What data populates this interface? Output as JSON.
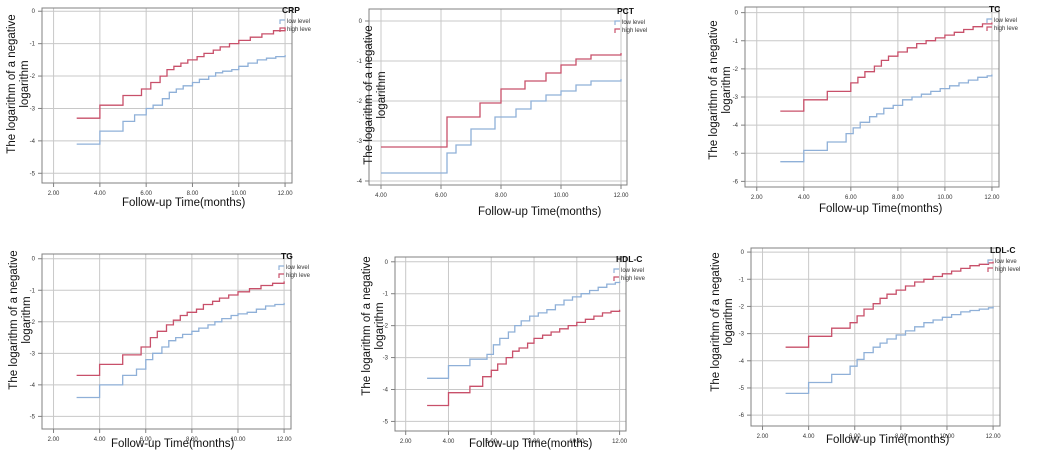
{
  "ylabel_line1": "The logarithm of a negative",
  "ylabel_line2": "logarithm",
  "xlabel": "Follow-up Time(months)",
  "colors": {
    "low": "#8fb0d8",
    "high": "#c8506a",
    "axis": "#808080",
    "grid": "#c8c8c8"
  },
  "chart_data": [
    {
      "type": "line",
      "title": "CRP",
      "xlim": [
        1.5,
        12.3
      ],
      "ylim": [
        -5.3,
        0.1
      ],
      "xticks": [
        "2.00",
        "4.00",
        "6.00",
        "8.00",
        "10.00",
        "12.00"
      ],
      "yticks": [
        "0",
        "-1",
        "-2",
        "-3",
        "-4",
        "-5"
      ],
      "legend": [
        "low level",
        "high leve"
      ],
      "series": [
        {
          "name": "low level",
          "x": [
            3.0,
            4.0,
            5.0,
            5.5,
            6.0,
            6.3,
            6.7,
            7.0,
            7.3,
            7.6,
            8.0,
            8.3,
            8.7,
            9.0,
            9.3,
            9.7,
            10.0,
            10.4,
            10.8,
            11.2,
            11.6,
            12.0
          ],
          "y": [
            -4.1,
            -3.7,
            -3.4,
            -3.2,
            -3.0,
            -2.9,
            -2.7,
            -2.5,
            -2.4,
            -2.3,
            -2.2,
            -2.1,
            -2.0,
            -1.9,
            -1.85,
            -1.8,
            -1.7,
            -1.6,
            -1.5,
            -1.45,
            -1.4,
            -1.35
          ]
        },
        {
          "name": "high leve",
          "x": [
            3.0,
            4.0,
            5.0,
            5.8,
            6.2,
            6.6,
            6.9,
            7.2,
            7.5,
            7.8,
            8.2,
            8.5,
            8.9,
            9.2,
            9.6,
            10.0,
            10.5,
            11.0,
            11.5,
            12.0
          ],
          "y": [
            -3.3,
            -2.9,
            -2.6,
            -2.4,
            -2.2,
            -2.0,
            -1.8,
            -1.7,
            -1.6,
            -1.5,
            -1.4,
            -1.3,
            -1.2,
            -1.1,
            -1.0,
            -0.9,
            -0.8,
            -0.7,
            -0.6,
            -0.5
          ]
        }
      ]
    },
    {
      "type": "line",
      "title": "PCT",
      "xlim": [
        3.6,
        12.2
      ],
      "ylim": [
        -4.1,
        0.3
      ],
      "xticks": [
        "4.00",
        "6.00",
        "8.00",
        "10.00",
        "12.00"
      ],
      "yticks": [
        "0",
        "-1",
        "-2",
        "-3",
        "-4"
      ],
      "legend": [
        "low level",
        "high level"
      ],
      "series": [
        {
          "name": "low level",
          "x": [
            4.0,
            6.2,
            6.5,
            7.0,
            7.8,
            8.5,
            9.0,
            9.5,
            10.0,
            10.5,
            11.0,
            12.0
          ],
          "y": [
            -3.8,
            -3.3,
            -3.1,
            -2.7,
            -2.4,
            -2.2,
            -2.0,
            -1.85,
            -1.75,
            -1.6,
            -1.5,
            -1.45
          ]
        },
        {
          "name": "high level",
          "x": [
            4.0,
            6.2,
            6.5,
            7.3,
            8.0,
            8.8,
            9.5,
            10.0,
            10.5,
            11.0,
            12.0
          ],
          "y": [
            -3.15,
            -2.4,
            -2.4,
            -2.05,
            -1.7,
            -1.5,
            -1.3,
            -1.1,
            -0.95,
            -0.85,
            -0.8
          ]
        }
      ]
    },
    {
      "type": "line",
      "title": "TC",
      "xlim": [
        1.5,
        12.3
      ],
      "ylim": [
        -6.2,
        0.2
      ],
      "xticks": [
        "2.00",
        "4.00",
        "6.00",
        "8.00",
        "10.00",
        "12.00"
      ],
      "yticks": [
        "0",
        "-1",
        "-2",
        "-3",
        "-4",
        "-5",
        "-6"
      ],
      "legend": [
        "low level",
        "high leve"
      ],
      "series": [
        {
          "name": "low level",
          "x": [
            3.0,
            4.0,
            5.0,
            5.8,
            6.1,
            6.4,
            6.8,
            7.1,
            7.4,
            7.8,
            8.2,
            8.6,
            9.0,
            9.4,
            9.8,
            10.2,
            10.6,
            11.0,
            11.4,
            11.8,
            12.0
          ],
          "y": [
            -5.3,
            -4.9,
            -4.6,
            -4.3,
            -4.1,
            -3.9,
            -3.7,
            -3.6,
            -3.4,
            -3.3,
            -3.1,
            -3.0,
            -2.9,
            -2.8,
            -2.7,
            -2.6,
            -2.5,
            -2.4,
            -2.3,
            -2.25,
            -2.2
          ]
        },
        {
          "name": "high leve",
          "x": [
            3.0,
            4.0,
            5.0,
            6.0,
            6.3,
            6.6,
            7.0,
            7.3,
            7.6,
            8.0,
            8.4,
            8.8,
            9.2,
            9.6,
            10.0,
            10.4,
            10.8,
            11.2,
            11.6,
            12.0
          ],
          "y": [
            -3.5,
            -3.1,
            -2.8,
            -2.5,
            -2.3,
            -2.1,
            -1.9,
            -1.7,
            -1.55,
            -1.4,
            -1.25,
            -1.1,
            -1.0,
            -0.9,
            -0.8,
            -0.7,
            -0.6,
            -0.5,
            -0.4,
            -0.35
          ]
        }
      ]
    },
    {
      "type": "line",
      "title": "TG",
      "xlim": [
        1.5,
        12.3
      ],
      "ylim": [
        -5.4,
        0.15
      ],
      "xticks": [
        "2.00",
        "4.00",
        "6.00",
        "8.00",
        "10.00",
        "12.00"
      ],
      "yticks": [
        "0",
        "-1",
        "-2",
        "-3",
        "-4",
        "-5"
      ],
      "legend": [
        "low level",
        "high leve"
      ],
      "series": [
        {
          "name": "low level",
          "x": [
            3.0,
            4.0,
            5.0,
            5.6,
            6.0,
            6.3,
            6.7,
            7.0,
            7.3,
            7.6,
            8.0,
            8.3,
            8.7,
            9.0,
            9.3,
            9.7,
            10.0,
            10.4,
            10.8,
            11.2,
            11.6,
            12.0
          ],
          "y": [
            -4.4,
            -4.0,
            -3.7,
            -3.5,
            -3.2,
            -3.0,
            -2.8,
            -2.6,
            -2.5,
            -2.4,
            -2.3,
            -2.2,
            -2.1,
            -2.0,
            -1.9,
            -1.8,
            -1.75,
            -1.7,
            -1.6,
            -1.5,
            -1.45,
            -1.4
          ]
        },
        {
          "name": "high leve",
          "x": [
            3.0,
            4.0,
            5.0,
            5.8,
            6.2,
            6.5,
            6.9,
            7.2,
            7.5,
            7.8,
            8.2,
            8.5,
            8.9,
            9.2,
            9.6,
            10.0,
            10.5,
            11.0,
            11.5,
            12.0
          ],
          "y": [
            -3.7,
            -3.35,
            -3.05,
            -2.8,
            -2.5,
            -2.3,
            -2.1,
            -1.95,
            -1.8,
            -1.7,
            -1.6,
            -1.45,
            -1.35,
            -1.25,
            -1.15,
            -1.05,
            -0.95,
            -0.85,
            -0.78,
            -0.72
          ]
        }
      ]
    },
    {
      "type": "line",
      "title": "HDL-C",
      "xlim": [
        1.5,
        12.3
      ],
      "ylim": [
        -5.3,
        0.15
      ],
      "xticks": [
        "2.00",
        "4.00",
        "6.00",
        "8.00",
        "10.00",
        "12.00"
      ],
      "yticks": [
        "0",
        "-1",
        "-2",
        "-3",
        "-4",
        "-5"
      ],
      "legend": [
        "low level",
        "high leve"
      ],
      "series": [
        {
          "name": "low level",
          "x": [
            3.0,
            4.0,
            5.0,
            5.8,
            6.1,
            6.4,
            6.8,
            7.1,
            7.4,
            7.8,
            8.2,
            8.6,
            9.0,
            9.4,
            9.8,
            10.2,
            10.6,
            11.0,
            11.4,
            11.8,
            12.0
          ],
          "y": [
            -3.65,
            -3.25,
            -3.05,
            -2.9,
            -2.6,
            -2.4,
            -2.2,
            -2.0,
            -1.85,
            -1.7,
            -1.6,
            -1.5,
            -1.35,
            -1.2,
            -1.1,
            -1.0,
            -0.9,
            -0.8,
            -0.7,
            -0.65,
            -0.62
          ]
        },
        {
          "name": "high leve",
          "x": [
            3.0,
            4.0,
            5.0,
            5.6,
            6.0,
            6.3,
            6.7,
            7.0,
            7.3,
            7.7,
            8.0,
            8.4,
            8.8,
            9.2,
            9.6,
            10.0,
            10.4,
            10.8,
            11.2,
            11.6,
            12.0
          ],
          "y": [
            -4.5,
            -4.1,
            -3.9,
            -3.6,
            -3.4,
            -3.2,
            -3.0,
            -2.8,
            -2.7,
            -2.55,
            -2.4,
            -2.3,
            -2.2,
            -2.1,
            -2.0,
            -1.9,
            -1.8,
            -1.7,
            -1.6,
            -1.55,
            -1.5
          ]
        }
      ]
    },
    {
      "type": "line",
      "title": "LDL-C",
      "xlim": [
        1.5,
        12.3
      ],
      "ylim": [
        -6.4,
        0.15
      ],
      "xticks": [
        "2.00",
        "4.00",
        "6.00",
        "8.00",
        "10.00",
        "12.00"
      ],
      "yticks": [
        "0",
        "-1",
        "-2",
        "-3",
        "-4",
        "-5",
        "-6"
      ],
      "legend": [
        "low leve",
        "high level"
      ],
      "series": [
        {
          "name": "low leve",
          "x": [
            3.0,
            4.0,
            5.0,
            5.8,
            6.1,
            6.4,
            6.8,
            7.1,
            7.4,
            7.8,
            8.2,
            8.6,
            9.0,
            9.4,
            9.8,
            10.2,
            10.6,
            11.0,
            11.4,
            11.8,
            12.0
          ],
          "y": [
            -5.2,
            -4.8,
            -4.5,
            -4.2,
            -3.95,
            -3.7,
            -3.5,
            -3.35,
            -3.2,
            -3.05,
            -2.9,
            -2.75,
            -2.6,
            -2.5,
            -2.4,
            -2.3,
            -2.2,
            -2.15,
            -2.1,
            -2.05,
            -2.0
          ]
        },
        {
          "name": "high level",
          "x": [
            3.0,
            4.0,
            5.0,
            5.8,
            6.1,
            6.4,
            6.8,
            7.1,
            7.4,
            7.8,
            8.2,
            8.6,
            9.0,
            9.4,
            9.8,
            10.2,
            10.6,
            11.0,
            11.4,
            11.8,
            12.0
          ],
          "y": [
            -3.5,
            -3.1,
            -2.8,
            -2.6,
            -2.35,
            -2.1,
            -1.9,
            -1.7,
            -1.55,
            -1.4,
            -1.25,
            -1.1,
            -1.0,
            -0.9,
            -0.8,
            -0.7,
            -0.6,
            -0.5,
            -0.45,
            -0.4,
            -0.35
          ]
        }
      ]
    }
  ]
}
